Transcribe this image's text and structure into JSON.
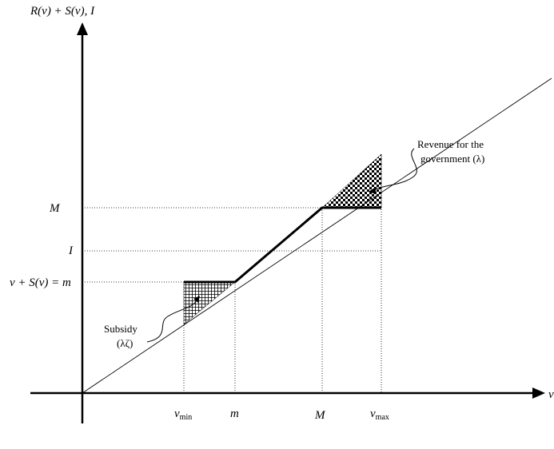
{
  "axes": {
    "y_label": "R(v) + S(v), I",
    "x_label": "v"
  },
  "x_ticks": {
    "v_min": "v",
    "v_min_sub": "min",
    "m": "m",
    "M": "M",
    "v_max": "v",
    "v_max_sub": "max"
  },
  "y_ticks": {
    "M": "M",
    "I": "I",
    "m": "v + S(v) = m"
  },
  "annotations": {
    "subsidy_line1": "Subsidy",
    "subsidy_line2": "(λζ)",
    "revenue_line1": "Revenue for the",
    "revenue_line2": "government (λ)"
  }
}
